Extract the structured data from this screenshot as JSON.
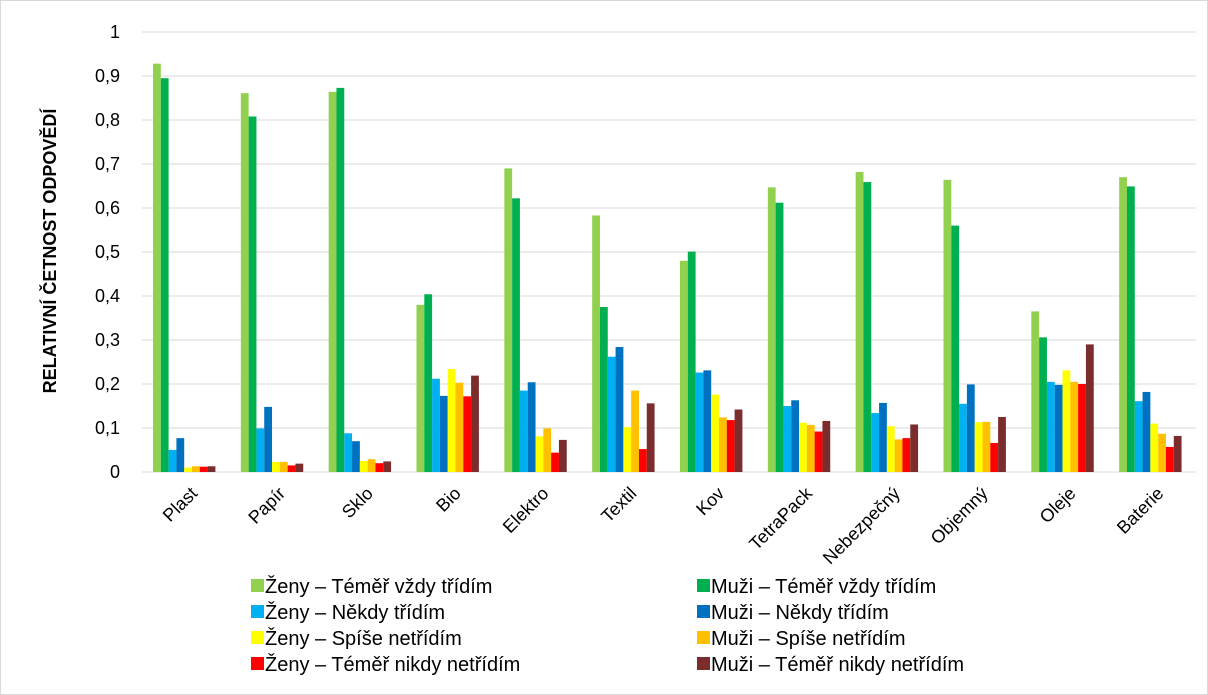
{
  "chart_data": {
    "type": "bar",
    "title": "",
    "xlabel": "",
    "ylabel": "RELATIVNÍ ČETNOST ODPOVĚDÍ",
    "ylim": [
      0,
      1
    ],
    "yticks": [
      "0",
      "0,1",
      "0,2",
      "0,3",
      "0,4",
      "0,5",
      "0,6",
      "0,7",
      "0,8",
      "0,9",
      "1"
    ],
    "grid": true,
    "legend_position": "bottom",
    "categories": [
      "Plast",
      "Papír",
      "Sklo",
      "Bio",
      "Elektro",
      "Textil",
      "Kov",
      "TetraPack",
      "Nebezpečný",
      "Objemný",
      "Oleje",
      "Baterie"
    ],
    "series": [
      {
        "name": "Ženy – Téměř vždy třídím",
        "color": "#92d050",
        "values": [
          0.928,
          0.861,
          0.864,
          0.38,
          0.69,
          0.583,
          0.48,
          0.647,
          0.682,
          0.664,
          0.365,
          0.67
        ]
      },
      {
        "name": "Muži – Téměř vždy třídím",
        "color": "#00b050",
        "values": [
          0.895,
          0.808,
          0.873,
          0.404,
          0.622,
          0.375,
          0.501,
          0.612,
          0.659,
          0.56,
          0.306,
          0.649
        ]
      },
      {
        "name": "Ženy – Někdy třídím",
        "color": "#00b0f0",
        "values": [
          0.05,
          0.099,
          0.088,
          0.212,
          0.185,
          0.262,
          0.226,
          0.15,
          0.134,
          0.155,
          0.205,
          0.161
        ]
      },
      {
        "name": "Muži – Někdy třídím",
        "color": "#0070c0",
        "values": [
          0.077,
          0.148,
          0.07,
          0.173,
          0.204,
          0.284,
          0.231,
          0.163,
          0.157,
          0.199,
          0.198,
          0.182
        ]
      },
      {
        "name": "Ženy – Spíše netřídím",
        "color": "#ffff00",
        "values": [
          0.01,
          0.023,
          0.025,
          0.234,
          0.081,
          0.102,
          0.176,
          0.112,
          0.104,
          0.113,
          0.231,
          0.11
        ]
      },
      {
        "name": "Muži – Spíše netřídím",
        "color": "#ffc000",
        "values": [
          0.013,
          0.023,
          0.029,
          0.203,
          0.099,
          0.185,
          0.124,
          0.107,
          0.074,
          0.114,
          0.205,
          0.087
        ]
      },
      {
        "name": "Ženy – Téměř nikdy netřídím",
        "color": "#ff0000",
        "values": [
          0.012,
          0.015,
          0.02,
          0.172,
          0.044,
          0.052,
          0.118,
          0.092,
          0.077,
          0.066,
          0.2,
          0.057
        ]
      },
      {
        "name": "Muži – Téměř nikdy netřídím",
        "color": "#7b2c2c",
        "values": [
          0.013,
          0.019,
          0.024,
          0.219,
          0.073,
          0.156,
          0.142,
          0.116,
          0.108,
          0.125,
          0.29,
          0.082
        ]
      }
    ]
  }
}
